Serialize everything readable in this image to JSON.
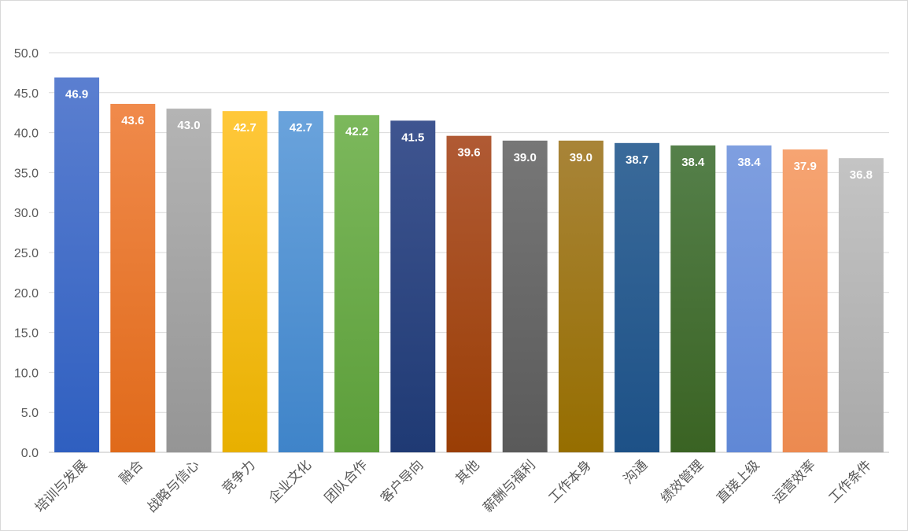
{
  "chart_data": {
    "type": "bar",
    "title": "",
    "xlabel": "",
    "ylabel": "",
    "ylim": [
      0,
      50
    ],
    "y_ticks": [
      "0.0",
      "5.0",
      "10.0",
      "15.0",
      "20.0",
      "25.0",
      "30.0",
      "35.0",
      "40.0",
      "45.0",
      "50.0"
    ],
    "grid": true,
    "legend": "none",
    "categories": [
      "培训与发展",
      "融合",
      "战略与信心",
      "竞争力",
      "企业文化",
      "团队合作",
      "客户导向",
      "其他",
      "薪酬与福利",
      "工作本身",
      "沟通",
      "绩效管理",
      "直接上级",
      "运营效率",
      "工作条件"
    ],
    "values": [
      46.9,
      43.6,
      43.0,
      42.7,
      42.7,
      42.2,
      41.5,
      39.6,
      39.0,
      39.0,
      38.7,
      38.4,
      38.4,
      37.9,
      36.8
    ],
    "value_labels": [
      "46.9",
      "43.6",
      "43.0",
      "42.7",
      "42.7",
      "42.2",
      "41.5",
      "39.6",
      "39.0",
      "39.0",
      "38.7",
      "38.4",
      "38.4",
      "37.9",
      "36.8"
    ],
    "colors": [
      [
        "#5b7fd0",
        "#2f5fc0"
      ],
      [
        "#f08a4b",
        "#e06a1a"
      ],
      [
        "#b4b4b4",
        "#959595"
      ],
      [
        "#ffc83a",
        "#e8b000"
      ],
      [
        "#6aa3dc",
        "#3f84c9"
      ],
      [
        "#7cb85c",
        "#5c9e3a"
      ],
      [
        "#3f5590",
        "#1f3a74"
      ],
      [
        "#b05a34",
        "#9a3e05"
      ],
      [
        "#777777",
        "#5a5a5a"
      ],
      [
        "#a88438",
        "#966e00"
      ],
      [
        "#3a6a9a",
        "#1d5187"
      ],
      [
        "#55804a",
        "#3a6323"
      ],
      [
        "#7f9fe0",
        "#6088d6"
      ],
      [
        "#f6a472",
        "#ec8a50"
      ],
      [
        "#c4c4c4",
        "#a9a9a9"
      ]
    ]
  }
}
